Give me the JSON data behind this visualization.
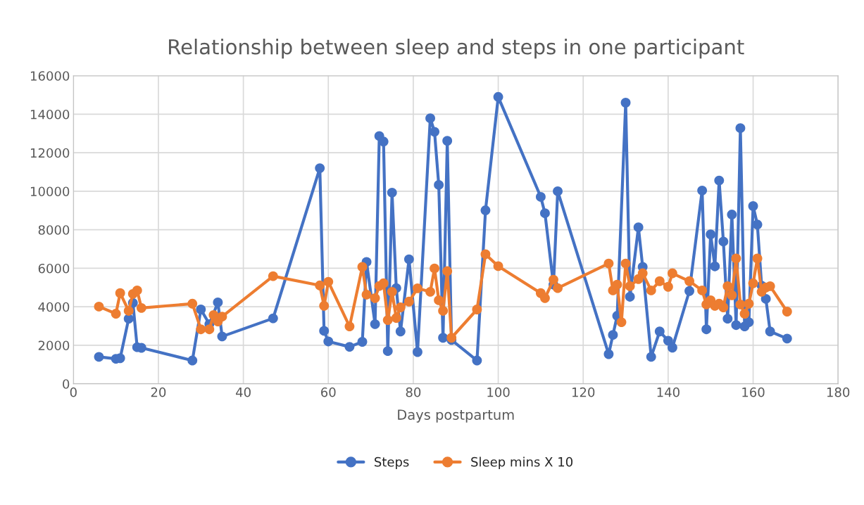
{
  "chart_data": {
    "type": "line",
    "title": "Relationship between sleep and steps in one participant",
    "xlabel": "Days postpartum",
    "xlim": [
      0,
      180
    ],
    "xticks": [
      0,
      20,
      40,
      60,
      80,
      100,
      120,
      140,
      160,
      180
    ],
    "ylim": [
      0,
      16000
    ],
    "yticks": [
      0,
      2000,
      4000,
      6000,
      8000,
      10000,
      12000,
      14000,
      16000
    ],
    "grid": true,
    "legend": "bottom",
    "marker": "circle",
    "line_style": "solid",
    "series": [
      {
        "name": "Steps",
        "color": "#4472c4",
        "x": [
          6,
          10,
          11,
          13,
          14,
          15,
          16,
          28,
          30,
          32,
          34,
          35,
          47,
          58,
          59,
          60,
          65,
          68,
          69,
          71,
          72,
          73,
          74,
          75,
          76,
          77,
          79,
          81,
          84,
          85,
          86,
          87,
          88,
          89,
          95,
          97,
          100,
          110,
          111,
          113,
          114,
          126,
          127,
          128,
          130,
          131,
          133,
          134,
          136,
          138,
          140,
          141,
          145,
          148,
          149,
          150,
          151,
          152,
          153,
          154,
          155,
          156,
          157,
          158,
          159,
          160,
          161,
          162,
          163,
          164,
          168
        ],
        "values": [
          1400,
          1300,
          1330,
          3380,
          4200,
          1900,
          1870,
          1210,
          3860,
          3100,
          4230,
          2460,
          3400,
          11200,
          2750,
          2200,
          1920,
          2180,
          6330,
          3100,
          12870,
          12580,
          1700,
          9930,
          4970,
          2720,
          6470,
          1650,
          13790,
          13090,
          10330,
          2390,
          12620,
          2280,
          1210,
          9010,
          14900,
          9710,
          8860,
          5150,
          10000,
          1540,
          2540,
          3530,
          14600,
          4520,
          8130,
          6070,
          1400,
          2720,
          2240,
          1880,
          4820,
          10040,
          2830,
          7760,
          6100,
          10560,
          7390,
          3380,
          8790,
          3050,
          13280,
          2980,
          3200,
          9230,
          8270,
          5100,
          4410,
          2720,
          2350
        ]
      },
      {
        "name": "Sleep mins X 10",
        "color": "#ed7d31",
        "x": [
          6,
          10,
          11,
          13,
          14,
          15,
          16,
          28,
          30,
          32,
          33,
          34,
          35,
          47,
          58,
          59,
          60,
          65,
          68,
          69,
          71,
          72,
          73,
          74,
          75,
          76,
          77,
          79,
          81,
          84,
          85,
          86,
          87,
          88,
          89,
          95,
          97,
          100,
          110,
          111,
          113,
          114,
          126,
          127,
          128,
          129,
          130,
          131,
          133,
          134,
          136,
          138,
          140,
          141,
          145,
          148,
          149,
          150,
          151,
          152,
          153,
          154,
          155,
          156,
          157,
          158,
          159,
          160,
          161,
          162,
          163,
          164,
          168
        ],
        "values": [
          4010,
          3640,
          4710,
          3790,
          4670,
          4850,
          3940,
          4160,
          2830,
          2830,
          3570,
          3240,
          3490,
          5590,
          5110,
          4050,
          5300,
          2980,
          6070,
          4630,
          4450,
          5080,
          5220,
          3310,
          4780,
          3420,
          3970,
          4270,
          4960,
          4780,
          5990,
          4340,
          3790,
          5850,
          2390,
          3860,
          6730,
          6110,
          4710,
          4450,
          5410,
          4970,
          6250,
          4850,
          5150,
          3200,
          6250,
          5070,
          5440,
          5740,
          4850,
          5330,
          5040,
          5740,
          5330,
          4850,
          4120,
          4340,
          4050,
          4160,
          3970,
          5070,
          4600,
          6510,
          4120,
          3640,
          4160,
          5220,
          6510,
          4780,
          5000,
          5070,
          3750
        ]
      }
    ]
  }
}
